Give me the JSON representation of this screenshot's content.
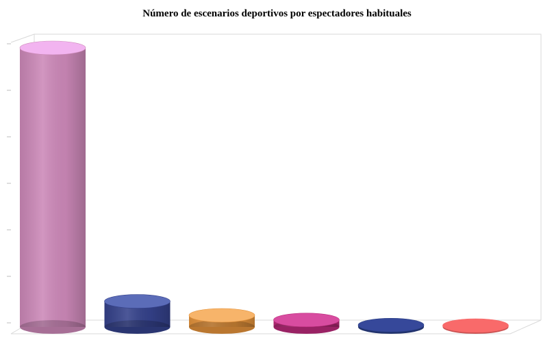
{
  "chart_data": {
    "type": "bar",
    "title": "Número de escenarios deportivos por espectadores habituales",
    "xlabel": "",
    "ylabel": "",
    "categories": [
      "",
      "",
      "",
      "",
      "",
      ""
    ],
    "values": [
      60,
      5.5,
      2.5,
      1.5,
      0.4,
      0.2
    ],
    "ylim": [
      0,
      60
    ],
    "y_ticks": [
      0,
      10,
      20,
      30,
      40,
      50,
      60
    ],
    "y_tick_labels": [
      "",
      "",
      "",
      "",
      "",
      "",
      ""
    ],
    "colors": [
      "#cc88b8",
      "#34418a",
      "#e3923b",
      "#bb2a7a",
      "#2a3f85",
      "#f56565"
    ],
    "top_colors": [
      "#f2b4f0",
      "#5b6cb8",
      "#f7b46a",
      "#d84ca0",
      "#36489a",
      "#f96a6a"
    ],
    "grid": false,
    "legend": "none",
    "bar_style": "3d-cylinder"
  }
}
